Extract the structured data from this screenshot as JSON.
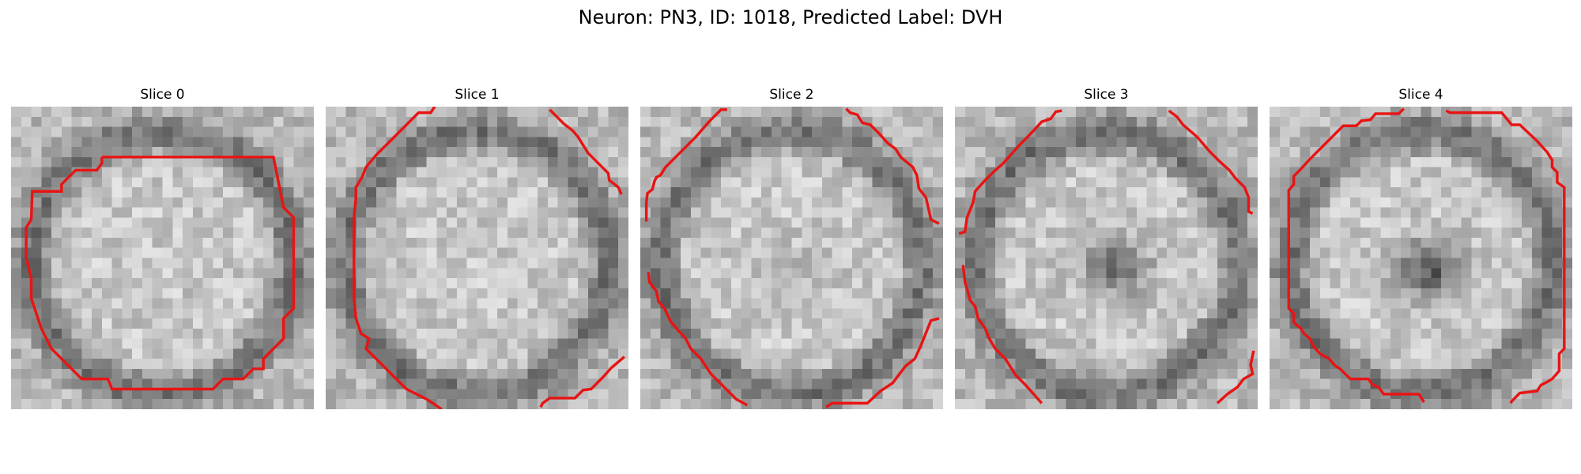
{
  "figure": {
    "title": "Neuron: PN3, ID: 1018, Predicted Label: DVH",
    "contour_color": "#e81414"
  },
  "panels": [
    {
      "title": "Slice 0",
      "dark_blob": 0.0
    },
    {
      "title": "Slice 1",
      "dark_blob": 0.0
    },
    {
      "title": "Slice 2",
      "dark_blob": 0.1
    },
    {
      "title": "Slice 3",
      "dark_blob": 0.7
    },
    {
      "title": "Slice 4",
      "dark_blob": 0.85
    }
  ]
}
